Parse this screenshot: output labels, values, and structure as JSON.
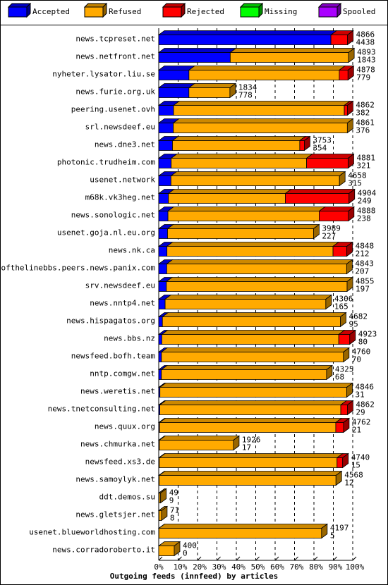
{
  "chart_data": {
    "type": "bar",
    "orientation": "horizontal",
    "stacked": true,
    "percent_axis": true,
    "xlabel": "Outgoing feeds (innfeed) by articles",
    "x_ticks": [
      "0%",
      "10%",
      "20%",
      "30%",
      "40%",
      "50%",
      "60%",
      "70%",
      "80%",
      "90%",
      "100%"
    ],
    "xlim": [
      0,
      5000
    ],
    "legend": {
      "placement": "top",
      "items": [
        {
          "name": "Accepted",
          "color": "#0000ff"
        },
        {
          "name": "Refused",
          "color": "#ffaa00"
        },
        {
          "name": "Rejected",
          "color": "#ff0000"
        },
        {
          "name": "Missing",
          "color": "#00ff00"
        },
        {
          "name": "Spooled",
          "color": "#aa00ff"
        }
      ]
    },
    "rows": [
      {
        "site": "news.tcpreset.net",
        "total": "4866",
        "accepted_label": "4438",
        "accepted": 4438,
        "refused": 0,
        "rejected": 428,
        "spooled": 0
      },
      {
        "site": "news.netfront.net",
        "total": "4893",
        "accepted_label": "1843",
        "accepted": 1843,
        "refused": 3050,
        "rejected": 0,
        "spooled": 0
      },
      {
        "site": "nyheter.lysator.liu.se",
        "total": "4878",
        "accepted_label": "779",
        "accepted": 779,
        "refused": 3874,
        "rejected": 225,
        "spooled": 0
      },
      {
        "site": "news.furie.org.uk",
        "total": "1834",
        "accepted_label": "778",
        "accepted": 778,
        "refused": 1056,
        "rejected": 0,
        "spooled": 0
      },
      {
        "site": "peering.usenet.ovh",
        "total": "4862",
        "accepted_label": "382",
        "accepted": 382,
        "refused": 4400,
        "rejected": 80,
        "spooled": 0
      },
      {
        "site": "srl.newsdeef.eu",
        "total": "4861",
        "accepted_label": "376",
        "accepted": 376,
        "refused": 4485,
        "rejected": 0,
        "spooled": 0
      },
      {
        "site": "news.dne3.net",
        "total": "3753",
        "accepted_label": "354",
        "accepted": 354,
        "refused": 3280,
        "rejected": 119,
        "spooled": 0
      },
      {
        "site": "photonic.trudheim.com",
        "total": "4881",
        "accepted_label": "321",
        "accepted": 321,
        "refused": 3490,
        "rejected": 1070,
        "spooled": 0
      },
      {
        "site": "usenet.network",
        "total": "4658",
        "accepted_label": "315",
        "accepted": 315,
        "refused": 4343,
        "rejected": 0,
        "spooled": 0
      },
      {
        "site": "m68k.vk3heg.net",
        "total": "4904",
        "accepted_label": "249",
        "accepted": 249,
        "refused": 3015,
        "rejected": 1640,
        "spooled": 0
      },
      {
        "site": "news.sonologic.net",
        "total": "4888",
        "accepted_label": "238",
        "accepted": 238,
        "refused": 3900,
        "rejected": 750,
        "spooled": 0
      },
      {
        "site": "usenet.goja.nl.eu.org",
        "total": "3989",
        "accepted_label": "227",
        "accepted": 227,
        "refused": 3762,
        "rejected": 0,
        "spooled": 0
      },
      {
        "site": "news.nk.ca",
        "total": "4848",
        "accepted_label": "212",
        "accepted": 212,
        "refused": 4280,
        "rejected": 356,
        "spooled": 0
      },
      {
        "site": "endofthelinebbs.peers.news.panix.com",
        "total": "4843",
        "accepted_label": "207",
        "accepted": 207,
        "refused": 4636,
        "rejected": 0,
        "spooled": 0
      },
      {
        "site": "srv.newsdeef.eu",
        "total": "4855",
        "accepted_label": "197",
        "accepted": 197,
        "refused": 4658,
        "rejected": 0,
        "spooled": 0
      },
      {
        "site": "news.nntp4.net",
        "total": "4306",
        "accepted_label": "165",
        "accepted": 165,
        "refused": 4141,
        "rejected": 0,
        "spooled": 0
      },
      {
        "site": "news.hispagatos.org",
        "total": "4682",
        "accepted_label": "95",
        "accepted": 95,
        "refused": 4587,
        "rejected": 0,
        "spooled": 0
      },
      {
        "site": "news.bbs.nz",
        "total": "4923",
        "accepted_label": "80",
        "accepted": 80,
        "refused": 4560,
        "rejected": 283,
        "spooled": 0
      },
      {
        "site": "newsfeed.bofh.team",
        "total": "4760",
        "accepted_label": "70",
        "accepted": 70,
        "refused": 4690,
        "rejected": 0,
        "spooled": 0
      },
      {
        "site": "nntp.comgw.net",
        "total": "4325",
        "accepted_label": "68",
        "accepted": 68,
        "refused": 4257,
        "rejected": 0,
        "spooled": 0
      },
      {
        "site": "news.weretis.net",
        "total": "4846",
        "accepted_label": "31",
        "accepted": 31,
        "refused": 4815,
        "rejected": 0,
        "spooled": 0
      },
      {
        "site": "news.tnetconsulting.net",
        "total": "4862",
        "accepted_label": "29",
        "accepted": 29,
        "refused": 4663,
        "rejected": 170,
        "spooled": 0
      },
      {
        "site": "news.quux.org",
        "total": "4762",
        "accepted_label": "21",
        "accepted": 21,
        "refused": 4541,
        "rejected": 200,
        "spooled": 0
      },
      {
        "site": "news.chmurka.net",
        "total": "1926",
        "accepted_label": "17",
        "accepted": 17,
        "refused": 1909,
        "rejected": 0,
        "spooled": 0
      },
      {
        "site": "newsfeed.xs3.de",
        "total": "4740",
        "accepted_label": "15",
        "accepted": 15,
        "refused": 4581,
        "rejected": 144,
        "spooled": 0
      },
      {
        "site": "news.samoylyk.net",
        "total": "4568",
        "accepted_label": "12",
        "accepted": 12,
        "refused": 4556,
        "rejected": 0,
        "spooled": 0
      },
      {
        "site": "ddt.demos.su",
        "total": "49",
        "accepted_label": "9",
        "accepted": 9,
        "refused": 40,
        "rejected": 0,
        "spooled": 0
      },
      {
        "site": "news.gletsjer.net",
        "total": "71",
        "accepted_label": "8",
        "accepted": 8,
        "refused": 63,
        "rejected": 0,
        "spooled": 0
      },
      {
        "site": "usenet.blueworldhosting.com",
        "total": "4197",
        "accepted_label": "5",
        "accepted": 5,
        "refused": 4192,
        "rejected": 0,
        "spooled": 0
      },
      {
        "site": "news.corradoroberto.it",
        "total": "400",
        "accepted_label": "0",
        "accepted": 0,
        "refused": 400,
        "rejected": 0,
        "spooled": 0
      }
    ]
  }
}
